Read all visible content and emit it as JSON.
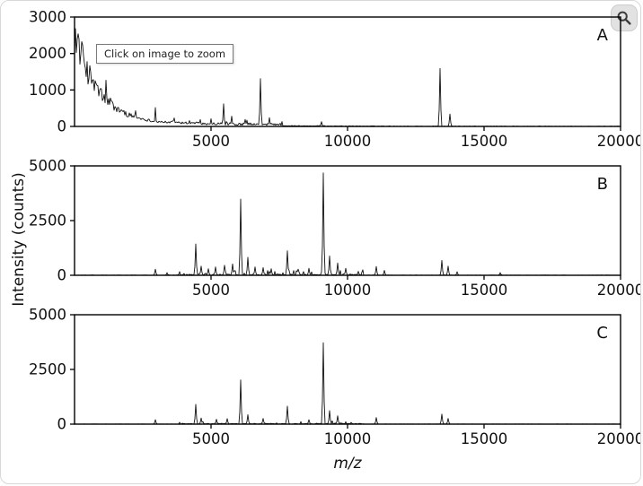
{
  "page": {
    "tooltip": "Click on image to zoom"
  },
  "figure": {
    "ylabel": "Intensity (counts)",
    "xlabel": "m/z",
    "line_color": "#111111",
    "axis_color": "#000000"
  },
  "chart_data": [
    {
      "type": "line",
      "panel_label": "A",
      "x_range": [
        0,
        20000
      ],
      "y_range": [
        0,
        3000
      ],
      "x_ticks": [
        5000,
        10000,
        15000,
        20000
      ],
      "y_ticks": [
        0,
        1000,
        2000,
        3000
      ],
      "baseline": {
        "type": "exp_decay",
        "a1": 2400,
        "tau1": 800,
        "a2": 230,
        "tau2": 3000
      },
      "noise": {
        "floor": 10,
        "rel": 0.22,
        "zone": [
          3500,
          7600
        ],
        "zone_amp": 60,
        "grass_p": 0.05,
        "grass_amp": 120
      },
      "peaks": [
        [
          1150,
          1270
        ],
        [
          1300,
          780
        ],
        [
          1600,
          520
        ],
        [
          2250,
          430
        ],
        [
          2950,
          520
        ],
        [
          4200,
          160
        ],
        [
          4600,
          190
        ],
        [
          5000,
          210
        ],
        [
          5450,
          620
        ],
        [
          5750,
          280
        ],
        [
          6300,
          170
        ],
        [
          6800,
          1310
        ],
        [
          7150,
          240
        ],
        [
          9050,
          130
        ],
        [
          13400,
          1590
        ],
        [
          13750,
          340
        ]
      ]
    },
    {
      "type": "line",
      "panel_label": "B",
      "x_range": [
        0,
        20000
      ],
      "y_range": [
        0,
        5000
      ],
      "x_ticks": [
        5000,
        10000,
        15000,
        20000
      ],
      "y_ticks": [
        0,
        2500,
        5000
      ],
      "baseline": null,
      "noise": {
        "floor": 14,
        "rel": 0,
        "zone": [
          3800,
          10600
        ],
        "zone_amp": 60,
        "grass_p": 0.12,
        "grass_amp": 230
      },
      "peaks": [
        [
          2950,
          280
        ],
        [
          3400,
          120
        ],
        [
          4450,
          1430
        ],
        [
          4650,
          420
        ],
        [
          4900,
          300
        ],
        [
          5150,
          380
        ],
        [
          5500,
          460
        ],
        [
          5800,
          520
        ],
        [
          6100,
          3480
        ],
        [
          6350,
          820
        ],
        [
          6600,
          380
        ],
        [
          6900,
          350
        ],
        [
          7200,
          300
        ],
        [
          7800,
          1120
        ],
        [
          8200,
          280
        ],
        [
          8600,
          320
        ],
        [
          9100,
          4680
        ],
        [
          9350,
          880
        ],
        [
          9650,
          560
        ],
        [
          9950,
          320
        ],
        [
          10400,
          180
        ],
        [
          11050,
          400
        ],
        [
          11350,
          220
        ],
        [
          13450,
          680
        ],
        [
          13700,
          420
        ],
        [
          14000,
          160
        ],
        [
          15600,
          120
        ]
      ]
    },
    {
      "type": "line",
      "panel_label": "C",
      "x_range": [
        0,
        20000
      ],
      "y_range": [
        0,
        5000
      ],
      "x_ticks": [
        5000,
        10000,
        15000,
        20000
      ],
      "y_ticks": [
        0,
        2500,
        5000
      ],
      "baseline": null,
      "noise": {
        "floor": 10,
        "rel": 0,
        "zone": [
          3800,
          10600
        ],
        "zone_amp": 35,
        "grass_p": 0.07,
        "grass_amp": 130
      },
      "peaks": [
        [
          2950,
          200
        ],
        [
          4450,
          900
        ],
        [
          4650,
          280
        ],
        [
          5200,
          220
        ],
        [
          5600,
          250
        ],
        [
          6100,
          2020
        ],
        [
          6350,
          430
        ],
        [
          6900,
          260
        ],
        [
          7800,
          820
        ],
        [
          8600,
          200
        ],
        [
          9100,
          3720
        ],
        [
          9350,
          620
        ],
        [
          9650,
          380
        ],
        [
          11050,
          300
        ],
        [
          13450,
          460
        ],
        [
          13700,
          260
        ]
      ]
    }
  ]
}
